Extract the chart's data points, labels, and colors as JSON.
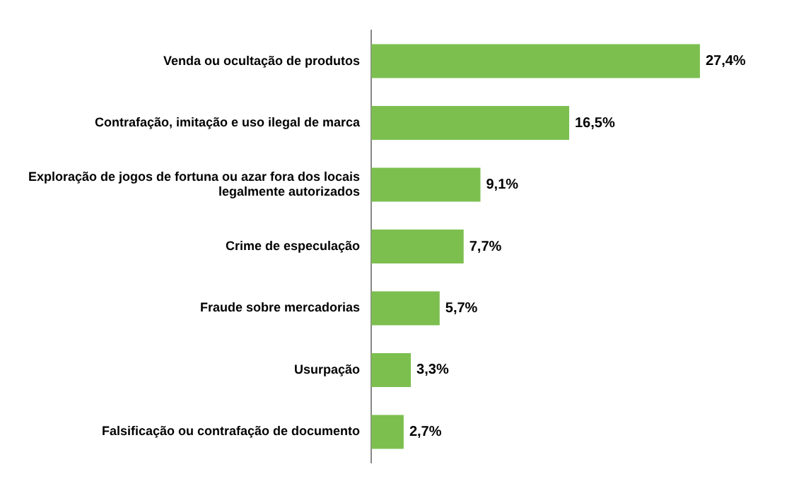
{
  "chart_data": {
    "type": "bar",
    "orientation": "horizontal",
    "categories": [
      "Venda ou ocultação de produtos",
      "Contrafação, imitação e uso ilegal de marca",
      "Exploração de jogos de fortuna ou azar fora dos locais legalmente autorizados",
      "Crime de especulação",
      "Fraude sobre mercadorias",
      "Usurpação",
      "Falsificação ou contrafação de documento"
    ],
    "values": [
      27.4,
      16.5,
      9.1,
      7.7,
      5.7,
      3.3,
      2.7
    ],
    "value_labels": [
      "27,4%",
      "16,5%",
      "9,1%",
      "7,7%",
      "5,7%",
      "3,3%",
      "2,7%"
    ],
    "color": "#7cbf4f",
    "grid": false,
    "legend": false,
    "tick_labels": "y"
  }
}
